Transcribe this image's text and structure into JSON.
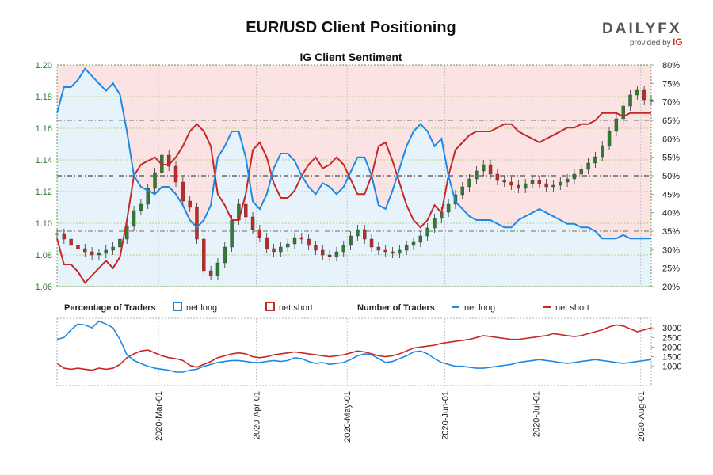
{
  "header": {
    "title": "EUR/USD Client Positioning",
    "subtitle": "IG Client Sentiment",
    "logo_text": "DAILYFX",
    "logo_sub": "provided by",
    "logo_ig": "IG"
  },
  "colors": {
    "long": "#1e88e5",
    "short": "#c62828",
    "long_bg": "#e6f3fb",
    "short_bg": "#fbe3e4",
    "up_candle": "#2e7d32",
    "down_candle": "#c62828"
  },
  "legend": {
    "pct_title": "Percentage of Traders",
    "num_title": "Number of Traders",
    "net_long": "net long",
    "net_short": "net short"
  },
  "chart_data": [
    {
      "type": "candlestick+line",
      "title": "IG Client Sentiment",
      "left_axis": {
        "label": "",
        "ylim": [
          1.06,
          1.2
        ],
        "ticks": [
          "1.20",
          "1.18",
          "1.16",
          "1.14",
          "1.12",
          "1.10",
          "1.08",
          "1.06"
        ]
      },
      "right_axis": {
        "label": "",
        "ylim": [
          20,
          80
        ],
        "ticks": [
          "80%",
          "75%",
          "70%",
          "65%",
          "60%",
          "55%",
          "50%",
          "45%",
          "40%",
          "35%",
          "30%",
          "25%",
          "20%"
        ]
      },
      "x_ticks": [
        "2020-Mar-01",
        "2020-Apr-01",
        "2020-May-01",
        "2020-Jun-01",
        "2020-Jul-01",
        "2020-Aug-01"
      ],
      "close": [
        1.0935,
        1.09,
        1.086,
        1.084,
        1.082,
        1.08,
        1.081,
        1.083,
        1.085,
        1.09,
        1.098,
        1.108,
        1.112,
        1.122,
        1.132,
        1.143,
        1.136,
        1.126,
        1.114,
        1.11,
        1.09,
        1.07,
        1.067,
        1.075,
        1.085,
        1.102,
        1.112,
        1.104,
        1.096,
        1.091,
        1.084,
        1.082,
        1.085,
        1.087,
        1.091,
        1.09,
        1.086,
        1.083,
        1.08,
        1.079,
        1.082,
        1.086,
        1.092,
        1.096,
        1.09,
        1.085,
        1.083,
        1.082,
        1.081,
        1.083,
        1.086,
        1.088,
        1.092,
        1.097,
        1.103,
        1.107,
        1.112,
        1.118,
        1.123,
        1.128,
        1.133,
        1.137,
        1.131,
        1.127,
        1.126,
        1.124,
        1.122,
        1.125,
        1.127,
        1.125,
        1.123,
        1.124,
        1.126,
        1.128,
        1.131,
        1.134,
        1.138,
        1.142,
        1.149,
        1.158,
        1.166,
        1.174,
        1.181,
        1.184,
        1.178,
        1.178
      ],
      "long_pct": [
        67,
        74,
        74,
        76,
        79,
        77,
        75,
        73,
        75,
        72,
        62,
        50,
        47,
        46,
        45,
        47,
        47,
        45,
        42,
        38,
        36,
        38,
        42,
        55,
        58,
        62,
        62,
        55,
        43,
        41,
        45,
        52,
        56,
        56,
        54,
        50,
        47,
        45,
        48,
        47,
        45,
        47,
        51,
        55,
        55,
        50,
        42,
        41,
        46,
        52,
        58,
        62,
        64,
        62,
        58,
        60,
        50,
        43,
        41,
        39,
        38,
        38,
        38,
        37,
        36,
        36,
        38,
        39,
        40,
        41,
        40,
        39,
        38,
        37,
        37,
        36,
        36,
        35,
        33,
        33,
        33,
        34,
        33,
        33,
        33,
        33
      ],
      "short_pct": [
        33,
        26,
        26,
        24,
        21,
        23,
        25,
        27,
        25,
        28,
        38,
        50,
        53,
        54,
        55,
        53,
        53,
        55,
        58,
        62,
        64,
        62,
        58,
        45,
        42,
        38,
        38,
        45,
        57,
        59,
        55,
        48,
        44,
        44,
        46,
        50,
        53,
        55,
        52,
        53,
        55,
        53,
        49,
        45,
        45,
        50,
        58,
        59,
        54,
        48,
        42,
        38,
        36,
        38,
        42,
        40,
        50,
        57,
        59,
        61,
        62,
        62,
        62,
        63,
        64,
        64,
        62,
        61,
        60,
        59,
        60,
        61,
        62,
        63,
        63,
        64,
        64,
        65,
        67,
        67,
        67,
        66,
        67,
        67,
        67,
        67
      ]
    },
    {
      "type": "line",
      "title": "Number of Traders",
      "ylim": [
        0,
        3500
      ],
      "ticks": [
        "3000",
        "2500",
        "2000",
        "1500",
        "1000"
      ],
      "net_long": [
        2400,
        2500,
        2900,
        3200,
        3150,
        3000,
        3350,
        3200,
        3000,
        2400,
        1600,
        1300,
        1150,
        1000,
        900,
        850,
        800,
        700,
        700,
        800,
        850,
        1000,
        1100,
        1200,
        1250,
        1300,
        1300,
        1250,
        1200,
        1200,
        1250,
        1300,
        1250,
        1300,
        1450,
        1400,
        1250,
        1150,
        1200,
        1100,
        1150,
        1200,
        1350,
        1550,
        1650,
        1600,
        1400,
        1200,
        1250,
        1400,
        1550,
        1750,
        1800,
        1650,
        1400,
        1200,
        1100,
        1000,
        1000,
        950,
        900,
        900,
        950,
        1000,
        1050,
        1100,
        1200,
        1250,
        1300,
        1350,
        1300,
        1250,
        1200,
        1150,
        1200,
        1250,
        1300,
        1350,
        1300,
        1250,
        1200,
        1150,
        1200,
        1250,
        1300,
        1350
      ],
      "net_short": [
        1150,
        900,
        850,
        900,
        850,
        800,
        900,
        850,
        900,
        1100,
        1450,
        1650,
        1800,
        1850,
        1700,
        1550,
        1450,
        1400,
        1300,
        1050,
        950,
        1100,
        1250,
        1450,
        1550,
        1650,
        1700,
        1650,
        1500,
        1450,
        1500,
        1600,
        1650,
        1700,
        1750,
        1700,
        1650,
        1600,
        1550,
        1500,
        1550,
        1600,
        1700,
        1800,
        1750,
        1650,
        1550,
        1500,
        1550,
        1650,
        1800,
        1950,
        2000,
        2050,
        2100,
        2200,
        2250,
        2300,
        2350,
        2400,
        2500,
        2600,
        2550,
        2500,
        2450,
        2400,
        2400,
        2450,
        2500,
        2550,
        2600,
        2700,
        2650,
        2600,
        2550,
        2600,
        2700,
        2800,
        2900,
        3050,
        3150,
        3100,
        2950,
        2800,
        2900,
        3000
      ]
    }
  ]
}
